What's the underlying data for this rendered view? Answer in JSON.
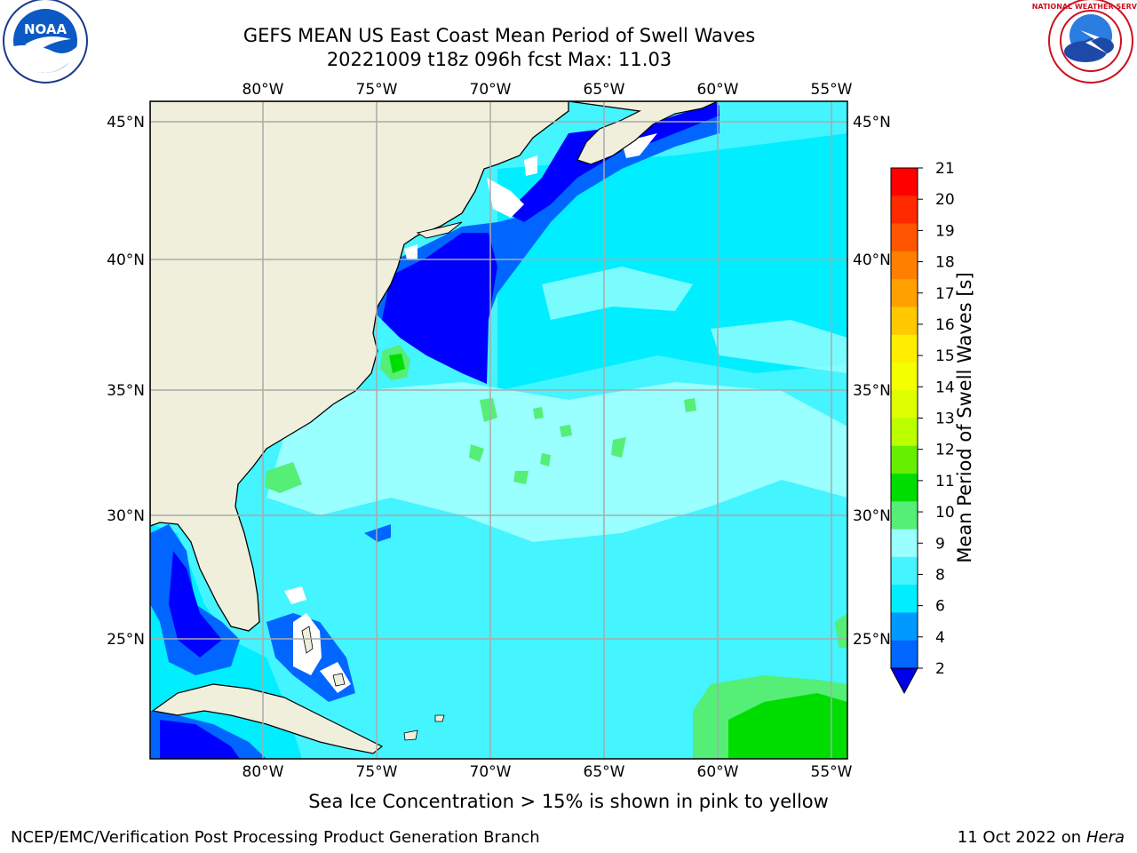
{
  "header": {
    "title_line1": "GEFS MEAN US East Coast Mean Period of Swell Waves",
    "title_line2": "20221009 t18z 096h fcst   Max: 11.03"
  },
  "logos": {
    "left": {
      "text": "NOAA",
      "ring_text": "NATIONAL OCEANIC AND ATMOSPHERIC ADMINISTRATION · U.S. DEPARTMENT OF COMMERCE"
    },
    "right": {
      "ring_text": "NATIONAL WEATHER SERVICE"
    }
  },
  "map": {
    "lon_labels": [
      "80°W",
      "75°W",
      "70°W",
      "65°W",
      "60°W",
      "55°W"
    ],
    "lat_labels": [
      "45°N",
      "40°N",
      "35°N",
      "30°N",
      "25°N"
    ],
    "colors": {
      "land": "#efefdc",
      "deep_blue": "#0000ff",
      "blue": "#0066ff",
      "cyan": "#00eeff",
      "light_cyan": "#44f4ff",
      "pale_cyan": "#99ffff",
      "light_green": "#55ee77",
      "green": "#00dd00"
    }
  },
  "colorbar": {
    "label": "Mean Period of Swell Waves [s]",
    "ticks": [
      "21",
      "20",
      "19",
      "18",
      "17",
      "16",
      "15",
      "14",
      "13",
      "12",
      "11",
      "10",
      "9",
      "8",
      "6",
      "4",
      "2"
    ],
    "colors": [
      "#ff0000",
      "#ff2a00",
      "#ff5500",
      "#ff7f00",
      "#ffa000",
      "#ffc800",
      "#ffee00",
      "#f4ff00",
      "#ddff00",
      "#bbff00",
      "#66ee00",
      "#00dd00",
      "#55ee77",
      "#99ffff",
      "#44f4ff",
      "#00eeff",
      "#0099ff",
      "#0066ff"
    ],
    "extend_color": "#0000ee"
  },
  "footer": {
    "note": "Sea Ice Concentration > 15% is shown in pink to yellow",
    "left": "NCEP/EMC/Verification Post Processing Product Generation Branch",
    "date": "11 Oct 2022 on",
    "machine": "Hera"
  }
}
